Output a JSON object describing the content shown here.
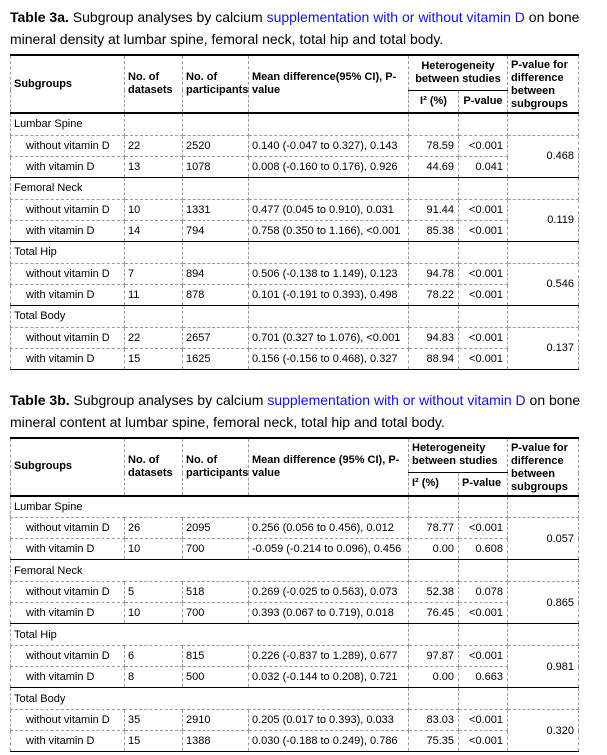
{
  "accent_blue": "#1212E0",
  "tables": [
    {
      "title": {
        "label": "Table 3a.",
        "before": " Subgroup analyses by calcium ",
        "highlight": "supplementation with or without vitamin D",
        "after": " on bone mineral density at lumbar spine, femoral neck, total hip and total body."
      },
      "header": {
        "subgroups": "Subgroups",
        "datasets": "No. of datasets",
        "participants": "No. of participants",
        "mean_diff": "Mean difference(95% CI), P-value",
        "heterogeneity": "Heterogeneity between studies",
        "i2": "I² (%)",
        "p_value": "P-value",
        "p_diff": "P-value for difference between subgroups"
      },
      "sections": [
        {
          "name": "Lumbar Spine",
          "p_diff": "0.468",
          "rows": [
            {
              "label": "without vitamin D",
              "datasets": "22",
              "participants": "2520",
              "mean": "0.140 (-0.047 to 0.327), 0.143",
              "i2": "78.59",
              "p": "<0.001"
            },
            {
              "label": "with vitamin D",
              "datasets": "13",
              "participants": "1078",
              "mean": "0.008 (-0.160 to 0.176), 0.926",
              "i2": "44.69",
              "p": "0.041"
            }
          ]
        },
        {
          "name": "Femoral Neck",
          "p_diff": "0.119",
          "rows": [
            {
              "label": "without vitamin D",
              "datasets": "10",
              "participants": "1331",
              "mean": "0.477 (0.045 to 0.910), 0.031",
              "i2": "91.44",
              "p": "<0.001"
            },
            {
              "label": "with vitamin D",
              "datasets": "14",
              "participants": "794",
              "mean": "0.758 (0.350 to 1.166), <0.001",
              "i2": "85.38",
              "p": "<0.001"
            }
          ]
        },
        {
          "name": "Total Hip",
          "p_diff": "0.546",
          "rows": [
            {
              "label": "without vitamin D",
              "datasets": "7",
              "participants": "894",
              "mean": "0.506 (-0.138 to 1.149), 0.123",
              "i2": "94.78",
              "p": "<0.001"
            },
            {
              "label": "with vitamin D",
              "datasets": "11",
              "participants": "878",
              "mean": "0.101 (-0.191 to 0.393), 0.498",
              "i2": "78.22",
              "p": "<0.001"
            }
          ]
        },
        {
          "name": "Total Body",
          "p_diff": "0.137",
          "rows": [
            {
              "label": "without vitamin D",
              "datasets": "22",
              "participants": "2657",
              "mean": "0.701 (0.327 to 1.076), <0.001",
              "i2": "94.83",
              "p": "<0.001"
            },
            {
              "label": "with vitamin D",
              "datasets": "15",
              "participants": "1625",
              "mean": "0.156 (-0.156 to 0.468), 0.327",
              "i2": "88.94",
              "p": "<0.001"
            }
          ]
        }
      ]
    },
    {
      "title": {
        "label": "Table 3b.",
        "before": " Subgroup analyses by calcium ",
        "highlight": "supplementation with or without vitamin D",
        "after": " on bone mineral content at lumbar spine, femoral neck, total hip and total body."
      },
      "header": {
        "subgroups": "Subgroups",
        "datasets": "No. of datasets",
        "participants": "No. of participants",
        "mean_diff": "Mean difference (95% CI), P-value",
        "heterogeneity": "Heterogeneity between studies",
        "i2": "I² (%)",
        "p_value": "P-value",
        "p_diff": "P-value for difference between subgroups"
      },
      "sections": [
        {
          "name": "Lumbar Spine",
          "p_diff": "0.057",
          "rows": [
            {
              "label": "without vitamin D",
              "datasets": "26",
              "participants": "2095",
              "mean": "0.256 (0.056 to 0.456), 0.012",
              "i2": "78.77",
              "p": "<0.001"
            },
            {
              "label": "with vitamin D",
              "datasets": "10",
              "participants": "700",
              "mean": "-0.059 (-0.214 to 0.096), 0.456",
              "i2": "0.00",
              "p": "0.608"
            }
          ]
        },
        {
          "name": "Femoral Neck",
          "p_diff": "0.865",
          "rows": [
            {
              "label": "without vitamin D",
              "datasets": "5",
              "participants": "518",
              "mean": "0.269 (-0.025 to 0.563), 0.073",
              "i2": "52.38",
              "p": "0.078"
            },
            {
              "label": "with vitamin D",
              "datasets": "10",
              "participants": "700",
              "mean": "0.393 (0.067 to 0.719), 0.018",
              "i2": "76.45",
              "p": "<0.001"
            }
          ]
        },
        {
          "name": "Total Hip",
          "p_diff": "0.981",
          "rows": [
            {
              "label": "without vitamin D",
              "datasets": "6",
              "participants": "815",
              "mean": "0.226 (-0.837 to 1.289), 0.677",
              "i2": "97.87",
              "p": "<0.001"
            },
            {
              "label": "with vitamin D",
              "datasets": "8",
              "participants": "500",
              "mean": "0.032 (-0.144 to 0.208), 0.721",
              "i2": "0.00",
              "p": "0.663"
            }
          ]
        },
        {
          "name": "Total Body",
          "p_diff": "0.320",
          "rows": [
            {
              "label": "without vitamin D",
              "datasets": "35",
              "participants": "2910",
              "mean": "0.205 (0.017 to 0.393), 0.033",
              "i2": "83.03",
              "p": "<0.001"
            },
            {
              "label": "with vitamin D",
              "datasets": "15",
              "participants": "1388",
              "mean": "0.030 (-0.188 to 0.249), 0.786",
              "i2": "75.35",
              "p": "<0.001"
            }
          ]
        }
      ]
    }
  ]
}
